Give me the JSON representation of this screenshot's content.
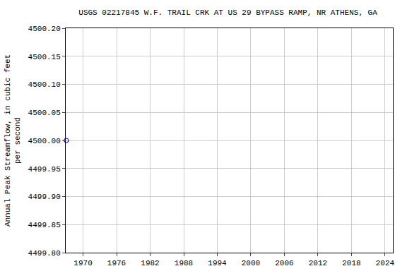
{
  "chart_data": {
    "type": "scatter",
    "title": "USGS 02217845 W.F. TRAIL CRK AT US 29 BYPASS RAMP, NR ATHENS, GA",
    "ylabel": "Annual Peak Streamflow, in cubic feet\nper second",
    "x": [
      1967
    ],
    "values": [
      4500
    ],
    "color": "#0000ff",
    "marker": "circle-open",
    "xlim": [
      1966.9,
      2025.4
    ],
    "xticks": [
      1970,
      1976,
      1982,
      1988,
      1994,
      2000,
      2006,
      2012,
      2018,
      2024
    ],
    "ylim": [
      4499.8,
      4500.2
    ],
    "yticks": [
      {
        "value": 4499.8,
        "label": "4499.80"
      },
      {
        "value": 4499.85,
        "label": "4499.85"
      },
      {
        "value": 4499.9,
        "label": "4499.90"
      },
      {
        "value": 4499.95,
        "label": "4499.95"
      },
      {
        "value": 4500,
        "label": "4500.00"
      },
      {
        "value": 4500.05,
        "label": "4500.05"
      },
      {
        "value": 4500.1,
        "label": "4500.10"
      },
      {
        "value": 4500.15,
        "label": "4500.15"
      },
      {
        "value": 4500.2,
        "label": "4500.20"
      }
    ],
    "grid": true
  }
}
